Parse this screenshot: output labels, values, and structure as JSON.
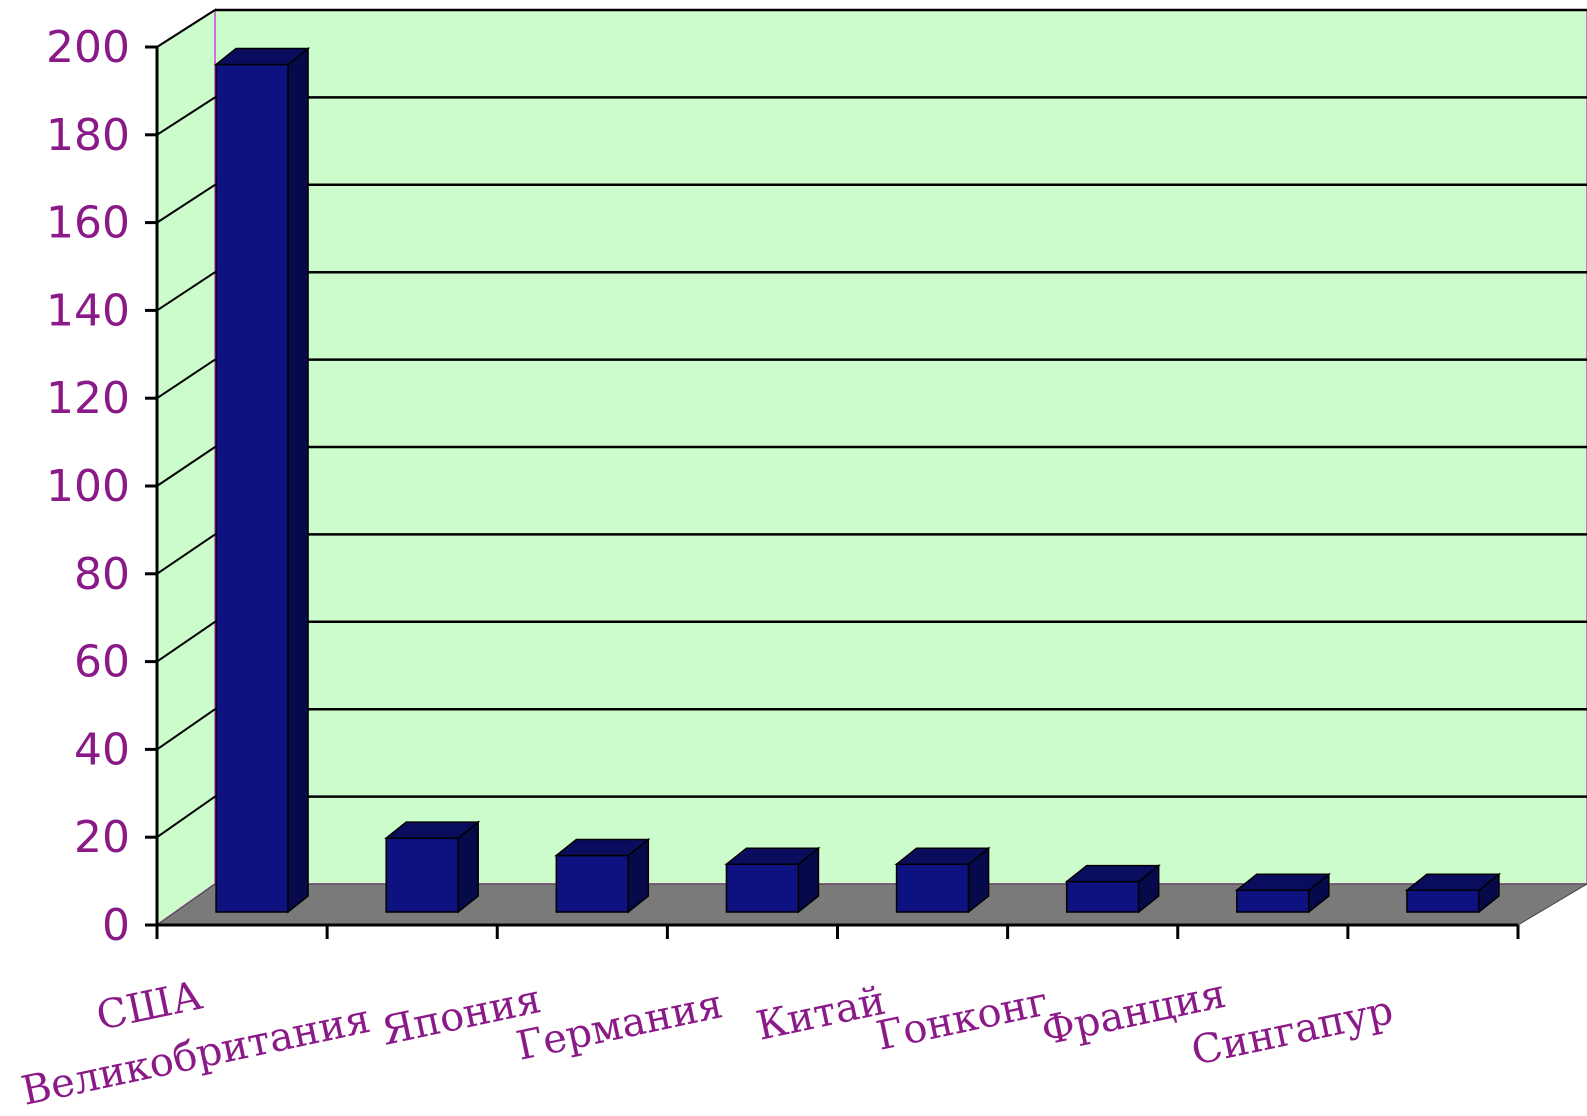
{
  "chart_data": {
    "type": "bar",
    "categories": [
      "США",
      "Великобритания",
      "Япония",
      "Германия",
      "Китай",
      "Гонконг",
      "Франция",
      "Сингапур"
    ],
    "values": [
      195,
      17,
      13,
      11,
      11,
      7,
      5,
      5
    ],
    "ylim": [
      0,
      200
    ],
    "yticks": [
      0,
      20,
      40,
      60,
      80,
      100,
      120,
      140,
      160,
      180,
      200
    ],
    "grid": true,
    "view": "3d",
    "colors": {
      "bar_front": "#0e1280",
      "bar_side": "#070a4a",
      "bar_top": "#0a0d5e",
      "back_wall": "#ccfbcc",
      "side_wall": "#ccfbcc",
      "floor": "#7a7a7a",
      "axis_text": "#8b1a89",
      "wall_border": "#d070d0"
    }
  }
}
